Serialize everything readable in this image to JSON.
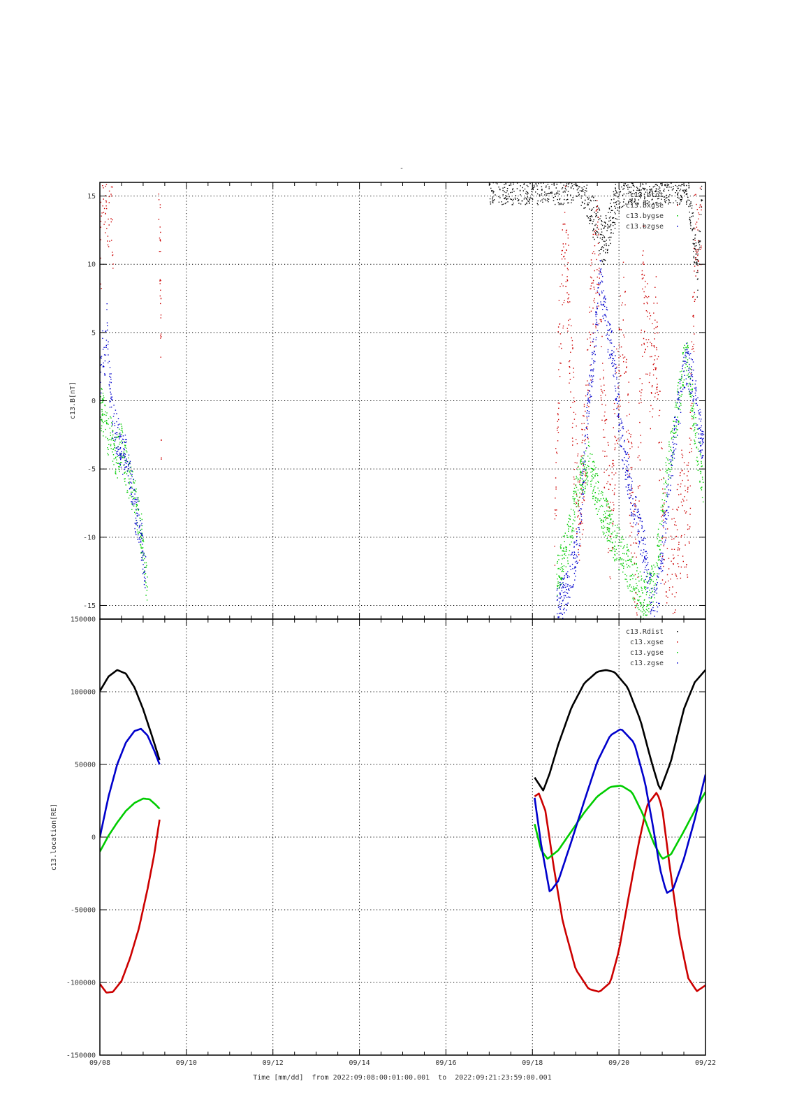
{
  "page": {
    "title_mark": "-",
    "xlabel": "Time [mm/dd]  from 2022:09:08:00:01:00.001  to  2022:09:21:23:59:00.001"
  },
  "chart_data": [
    {
      "type": "scatter",
      "ylabel": "c13.B[nT]",
      "xlim": [
        0,
        14
      ],
      "ylim": [
        -16,
        16
      ],
      "x_ticks": [
        {
          "x": 0,
          "label": "09/08"
        },
        {
          "x": 2,
          "label": "09/10"
        },
        {
          "x": 4,
          "label": "09/12"
        },
        {
          "x": 6,
          "label": "09/14"
        },
        {
          "x": 8,
          "label": "09/16"
        },
        {
          "x": 10,
          "label": "09/18"
        },
        {
          "x": 12,
          "label": "09/20"
        },
        {
          "x": 14,
          "label": "09/22"
        }
      ],
      "y_ticks": [
        {
          "v": 15,
          "label": "15"
        },
        {
          "v": 10,
          "label": "10"
        },
        {
          "v": 5,
          "label": "5"
        },
        {
          "v": 0,
          "label": "0"
        },
        {
          "v": -5,
          "label": "-5"
        },
        {
          "v": -10,
          "label": "-10"
        },
        {
          "v": -15,
          "label": "-15"
        }
      ],
      "grid": true,
      "legend_position": "top-right",
      "series": [
        {
          "name": "c13.btot",
          "color": "#000000",
          "segments": [
            {
              "x": [
                9.0,
                9.12,
                9.24,
                9.36,
                9.48,
                9.6,
                9.72,
                9.84,
                9.96,
                10.08,
                10.2,
                10.32,
                10.44,
                10.56,
                10.68,
                10.8,
                10.92,
                11.04,
                11.16,
                11.28,
                11.4,
                11.52,
                11.64,
                11.76,
                11.88,
                12.0,
                12.12,
                12.24,
                12.36,
                12.48,
                12.6,
                12.72,
                12.84,
                12.96,
                13.08,
                13.2,
                13.32,
                13.44,
                13.56,
                13.68,
                13.8,
                13.92
              ],
              "y": [
                16.0,
                16.0,
                16.0,
                16.0,
                16.0,
                16.0,
                16.0,
                16.0,
                16.0,
                16.0,
                16.0,
                16.0,
                16.0,
                16.0,
                16.0,
                16.0,
                16.0,
                16.0,
                15.8,
                14.8,
                13.5,
                12.6,
                11.5,
                12.8,
                14.0,
                15.6,
                16.0,
                16.0,
                16.0,
                16.0,
                16.0,
                16.0,
                16.0,
                16.0,
                16.0,
                16.0,
                16.0,
                16.0,
                16.0,
                13.2,
                9.1,
                16.0
              ]
            }
          ]
        },
        {
          "name": "c13.bxgse",
          "color": "#cc0000",
          "segments": [
            {
              "x": [
                0.0,
                0.05,
                0.1,
                0.15,
                0.2,
                0.25,
                0.3
              ],
              "y": [
                10.2,
                13.4,
                15.5,
                14.1,
                16.0,
                15.2,
                14.0
              ]
            },
            {
              "x": [
                1.35,
                1.36,
                1.37,
                1.38,
                1.39,
                1.4,
                1.41
              ],
              "y": [
                15.8,
                14.5,
                13.0,
                11.8,
                8.2,
                5.8,
                -1.0
              ]
            },
            {
              "x": [
                10.5,
                10.6,
                10.75,
                10.9,
                11.05,
                11.2,
                11.35,
                11.5,
                11.65,
                11.8,
                11.95,
                12.1,
                12.25,
                12.4,
                12.55,
                12.7,
                12.85,
                13.0,
                13.15,
                13.3,
                13.45,
                13.6,
                13.75,
                13.9
              ],
              "y": [
                -11.0,
                3.5,
                12.8,
                1.2,
                -8.5,
                -4.0,
                6.5,
                10.8,
                -2.5,
                -9.8,
                0.5,
                7.2,
                -6.0,
                -12.5,
                9.5,
                2.0,
                5.0,
                -9.0,
                -13.5,
                -11.5,
                -7.8,
                -9.0,
                12.0,
                14.2
              ]
            }
          ]
        },
        {
          "name": "c13.bygse",
          "color": "#00cc00",
          "segments": [
            {
              "x": [
                0.0,
                0.08,
                0.16,
                0.24,
                0.32,
                0.4,
                0.48,
                0.56,
                0.64,
                0.72,
                0.8,
                0.88,
                0.96,
                1.04,
                1.1
              ],
              "y": [
                -0.3,
                -1.2,
                -2.6,
                -1.8,
                -3.5,
                -4.2,
                -3.0,
                -4.6,
                -5.5,
                -6.3,
                -6.8,
                -8.5,
                -10.0,
                -12.4,
                -14.6
              ]
            },
            {
              "x": [
                10.55,
                10.8,
                11.05,
                11.3,
                11.55,
                11.8,
                12.05,
                12.3,
                12.55,
                12.8,
                12.92,
                13.05,
                13.3,
                13.55,
                13.8,
                13.95
              ],
              "y": [
                -13.0,
                -10.5,
                -6.2,
                -4.5,
                -7.6,
                -9.5,
                -11.2,
                -12.8,
                -14.6,
                -13.2,
                -10.5,
                -6.4,
                -1.5,
                3.8,
                -3.5,
                -6.2
              ]
            }
          ]
        },
        {
          "name": "c13.bzgse",
          "color": "#0000cc",
          "segments": [
            {
              "x": [
                0.0,
                0.05,
                0.1,
                0.15,
                0.2,
                0.25,
                0.3,
                0.4,
                0.5,
                0.6,
                0.7,
                0.8,
                0.9,
                1.0,
                1.05
              ],
              "y": [
                1.2,
                3.8,
                2.0,
                6.5,
                1.5,
                0.5,
                -1.8,
                -2.5,
                -4.0,
                -3.2,
                -6.0,
                -8.0,
                -9.2,
                -11.5,
                -13.0
              ]
            },
            {
              "x": [
                10.55,
                10.8,
                11.05,
                11.3,
                11.45,
                11.55,
                11.7,
                11.85,
                12.05,
                12.3,
                12.55,
                12.72,
                12.8,
                12.92,
                13.05,
                13.3,
                13.55,
                13.7,
                13.85,
                13.95
              ],
              "y": [
                -15.4,
                -13.6,
                -10.5,
                0.5,
                4.8,
                9.2,
                5.5,
                3.5,
                -2.8,
                -7.5,
                -10.5,
                -14.0,
                -15.4,
                -13.5,
                -9.0,
                -2.0,
                2.8,
                1.5,
                -2.0,
                -3.5
              ]
            }
          ]
        }
      ]
    },
    {
      "type": "line",
      "ylabel": "c13.location[RE]",
      "xlim": [
        0,
        14
      ],
      "ylim": [
        -150000,
        150000
      ],
      "x_ticks": [
        {
          "x": 0,
          "label": "09/08"
        },
        {
          "x": 2,
          "label": "09/10"
        },
        {
          "x": 4,
          "label": "09/12"
        },
        {
          "x": 6,
          "label": "09/14"
        },
        {
          "x": 8,
          "label": "09/16"
        },
        {
          "x": 10,
          "label": "09/18"
        },
        {
          "x": 12,
          "label": "09/20"
        },
        {
          "x": 14,
          "label": "09/22"
        }
      ],
      "y_ticks": [
        {
          "v": 150000,
          "label": "150000"
        },
        {
          "v": 100000,
          "label": "100000"
        },
        {
          "v": 50000,
          "label": "50000"
        },
        {
          "v": 0,
          "label": "0"
        },
        {
          "v": -50000,
          "label": "-50000"
        },
        {
          "v": -100000,
          "label": "-100000"
        },
        {
          "v": -150000,
          "label": "-150000"
        }
      ],
      "grid": true,
      "legend_position": "top-right",
      "series": [
        {
          "name": "c13.Rdist",
          "color": "#000000",
          "segments": [
            {
              "x": [
                0.0,
                0.2,
                0.4,
                0.6,
                0.8,
                1.0,
                1.2,
                1.38
              ],
              "y": [
                100500,
                110500,
                115000,
                112500,
                103000,
                88000,
                70000,
                53000
              ]
            },
            {
              "x": [
                10.05,
                10.25,
                10.4,
                10.6,
                10.9,
                11.2,
                11.5,
                11.7,
                11.9,
                12.2,
                12.5,
                12.75,
                12.95,
                13.2,
                13.5,
                13.75,
                14.0
              ],
              "y": [
                41000,
                32000,
                44000,
                64000,
                89000,
                106000,
                113800,
                115000,
                113500,
                103000,
                80000,
                52000,
                32000,
                52000,
                88000,
                106500,
                115000
              ]
            }
          ]
        },
        {
          "name": "c13.xgse",
          "color": "#cc0000",
          "segments": [
            {
              "x": [
                0.0,
                0.15,
                0.3,
                0.5,
                0.7,
                0.9,
                1.1,
                1.25,
                1.38
              ],
              "y": [
                -101000,
                -107000,
                -106500,
                -99000,
                -83000,
                -63000,
                -36000,
                -13000,
                12000
              ]
            },
            {
              "x": [
                10.05,
                10.15,
                10.3,
                10.5,
                10.7,
                11.0,
                11.3,
                11.55,
                11.8,
                12.0,
                12.2,
                12.45,
                12.65,
                12.88,
                13.0,
                13.15,
                13.4,
                13.6,
                13.8,
                14.0
              ],
              "y": [
                28000,
                30000,
                18000,
                -22000,
                -58000,
                -91000,
                -104500,
                -106500,
                -100000,
                -78000,
                -45000,
                -5000,
                22000,
                31000,
                20000,
                -15000,
                -68000,
                -97000,
                -106000,
                -102000
              ]
            }
          ]
        },
        {
          "name": "c13.ygse",
          "color": "#00cc00",
          "segments": [
            {
              "x": [
                0.0,
                0.2,
                0.4,
                0.6,
                0.8,
                1.0,
                1.15,
                1.3,
                1.38
              ],
              "y": [
                -10000,
                1000,
                10000,
                18000,
                23500,
                26500,
                26000,
                22000,
                19500
              ]
            },
            {
              "x": [
                10.05,
                10.2,
                10.35,
                10.6,
                10.9,
                11.2,
                11.5,
                11.8,
                12.05,
                12.3,
                12.55,
                12.8,
                13.0,
                13.2,
                13.5,
                13.8,
                14.0
              ],
              "y": [
                9000,
                -9000,
                -15000,
                -9000,
                4000,
                17000,
                28000,
                34500,
                35500,
                31000,
                16000,
                -4000,
                -15000,
                -12000,
                4000,
                21000,
                31000
              ]
            }
          ]
        },
        {
          "name": "c13.zgse",
          "color": "#0000cc",
          "segments": [
            {
              "x": [
                0.0,
                0.2,
                0.4,
                0.6,
                0.8,
                0.95,
                1.1,
                1.25,
                1.38
              ],
              "y": [
                0,
                28000,
                50000,
                65000,
                73000,
                74500,
                70000,
                60000,
                50000
              ]
            },
            {
              "x": [
                10.05,
                10.2,
                10.4,
                10.6,
                10.9,
                11.2,
                11.5,
                11.8,
                12.05,
                12.35,
                12.6,
                12.8,
                12.95,
                13.1,
                13.25,
                13.5,
                13.75,
                14.0
              ],
              "y": [
                27000,
                -5000,
                -38000,
                -30000,
                -3000,
                25000,
                52000,
                70000,
                74500,
                65000,
                38000,
                5000,
                -22000,
                -38500,
                -36000,
                -15000,
                12000,
                43000
              ]
            }
          ]
        }
      ]
    }
  ]
}
